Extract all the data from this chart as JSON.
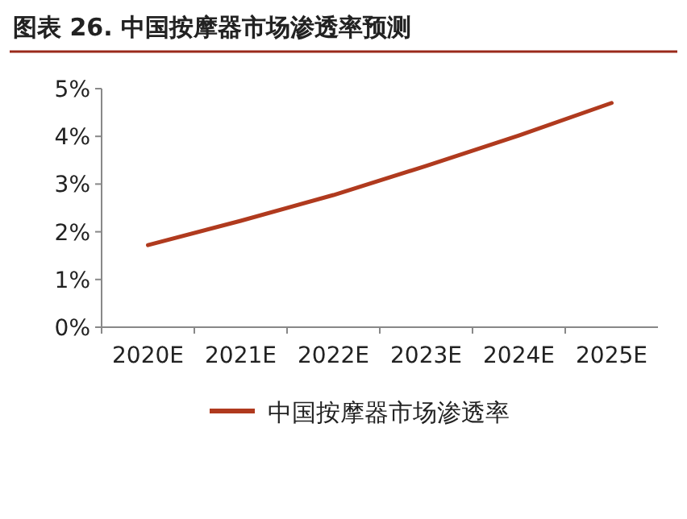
{
  "chart_data": {
    "type": "line",
    "title": "图表 26. 中国按摩器市场渗透率预测",
    "categories": [
      "2020E",
      "2021E",
      "2022E",
      "2023E",
      "2024E",
      "2025E"
    ],
    "series": [
      {
        "name": "中国按摩器市场渗透率",
        "color": "#b03a1e",
        "values": [
          1.72,
          2.23,
          2.77,
          3.38,
          4.02,
          4.7
        ]
      }
    ],
    "ylim": [
      0,
      5
    ],
    "yticks": [
      {
        "value": 0,
        "label": "0%"
      },
      {
        "value": 1,
        "label": "1%"
      },
      {
        "value": 2,
        "label": "2%"
      },
      {
        "value": 3,
        "label": "3%"
      },
      {
        "value": 4,
        "label": "4%"
      },
      {
        "value": 5,
        "label": "5%"
      }
    ],
    "legend": "bottom"
  }
}
